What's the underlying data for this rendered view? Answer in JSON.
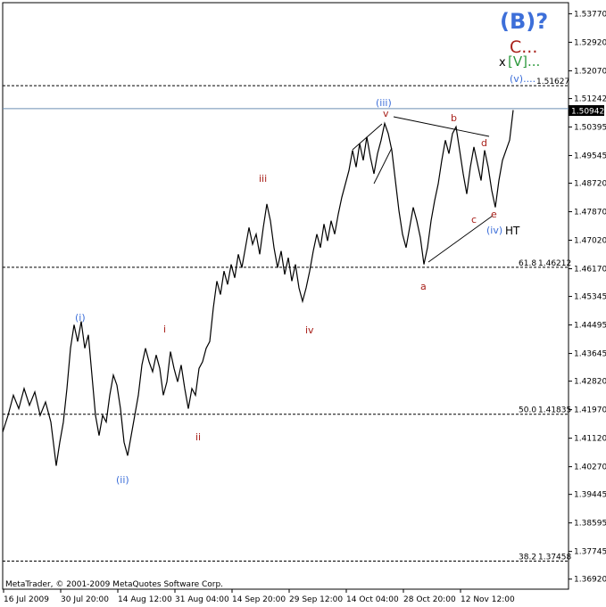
{
  "footer": {
    "copyright": "MetaTrader, © 2001-2009 MetaQuotes Software Corp."
  },
  "colors": {
    "background": "#ffffff",
    "price": "#000000",
    "blue": "#3d6fd9",
    "red": "#a8201a",
    "green": "#2e9a3e",
    "level_line": "#000000",
    "current_price_line": "#6e8fb3",
    "current_price_box": "#000000"
  },
  "annotations": {
    "big": "(B)?",
    "c_dots": "C...",
    "x": "x",
    "v_bracket": "[V]...",
    "v_paren": "(v)....",
    "ht": "HT",
    "wave_labels": [
      "(i)",
      "(ii)",
      "(iii)",
      "(iv)",
      "i",
      "ii",
      "iii",
      "iv",
      "v",
      "a",
      "b",
      "c",
      "d",
      "e"
    ]
  },
  "chart_data": {
    "type": "line",
    "title": "",
    "ylim": [
      1.3662,
      1.541
    ],
    "x_tick_labels": [
      "16 Jul 2009",
      "30 Jul 20:00",
      "14 Aug 12:00",
      "31 Aug 04:00",
      "14 Sep 20:00",
      "29 Sep 12:00",
      "14 Oct 04:00",
      "28 Oct 20:00",
      "12 Nov 12:00"
    ],
    "y_tick_labels": [
      "1.53770",
      "1.52920",
      "1.52070",
      "1.51242",
      "1.50395",
      "1.49545",
      "1.48720",
      "1.47870",
      "1.47020",
      "1.46170",
      "1.45345",
      "1.44495",
      "1.43645",
      "1.42820",
      "1.41970",
      "1.41120",
      "1.40270",
      "1.39445",
      "1.38595",
      "1.37745",
      "1.36920"
    ],
    "current_price": "1.50942",
    "levels": [
      {
        "label": "",
        "value": "1.51627"
      },
      {
        "label": "61.8",
        "value": "1.46212"
      },
      {
        "label": "50.0",
        "value": "1.41835"
      },
      {
        "label": "38.2",
        "value": "1.37458"
      }
    ],
    "series": [
      {
        "values": [
          [
            0,
            1.413
          ],
          [
            6,
            1.418
          ],
          [
            12,
            1.424
          ],
          [
            18,
            1.42
          ],
          [
            24,
            1.426
          ],
          [
            30,
            1.421
          ],
          [
            36,
            1.425
          ],
          [
            42,
            1.418
          ],
          [
            48,
            1.422
          ],
          [
            54,
            1.416
          ],
          [
            60,
            1.403
          ],
          [
            64,
            1.41
          ],
          [
            68,
            1.416
          ],
          [
            72,
            1.426
          ],
          [
            76,
            1.438
          ],
          [
            80,
            1.445
          ],
          [
            84,
            1.44
          ],
          [
            88,
            1.446
          ],
          [
            92,
            1.438
          ],
          [
            96,
            1.442
          ],
          [
            100,
            1.43
          ],
          [
            104,
            1.418
          ],
          [
            108,
            1.412
          ],
          [
            112,
            1.418
          ],
          [
            116,
            1.416
          ],
          [
            120,
            1.424
          ],
          [
            124,
            1.43
          ],
          [
            128,
            1.427
          ],
          [
            132,
            1.42
          ],
          [
            136,
            1.41
          ],
          [
            140,
            1.406
          ],
          [
            144,
            1.412
          ],
          [
            148,
            1.418
          ],
          [
            152,
            1.424
          ],
          [
            156,
            1.433
          ],
          [
            160,
            1.438
          ],
          [
            164,
            1.434
          ],
          [
            168,
            1.431
          ],
          [
            172,
            1.436
          ],
          [
            176,
            1.432
          ],
          [
            180,
            1.424
          ],
          [
            184,
            1.428
          ],
          [
            188,
            1.437
          ],
          [
            192,
            1.432
          ],
          [
            196,
            1.428
          ],
          [
            200,
            1.433
          ],
          [
            204,
            1.426
          ],
          [
            208,
            1.42
          ],
          [
            212,
            1.426
          ],
          [
            216,
            1.424
          ],
          [
            220,
            1.432
          ],
          [
            224,
            1.434
          ],
          [
            228,
            1.438
          ],
          [
            232,
            1.44
          ],
          [
            236,
            1.45
          ],
          [
            240,
            1.458
          ],
          [
            244,
            1.454
          ],
          [
            248,
            1.461
          ],
          [
            252,
            1.457
          ],
          [
            256,
            1.463
          ],
          [
            260,
            1.459
          ],
          [
            264,
            1.466
          ],
          [
            268,
            1.462
          ],
          [
            272,
            1.468
          ],
          [
            276,
            1.474
          ],
          [
            280,
            1.469
          ],
          [
            284,
            1.472
          ],
          [
            288,
            1.466
          ],
          [
            292,
            1.474
          ],
          [
            296,
            1.481
          ],
          [
            300,
            1.476
          ],
          [
            304,
            1.468
          ],
          [
            308,
            1.462
          ],
          [
            312,
            1.467
          ],
          [
            316,
            1.46
          ],
          [
            320,
            1.465
          ],
          [
            324,
            1.458
          ],
          [
            328,
            1.463
          ],
          [
            332,
            1.456
          ],
          [
            336,
            1.452
          ],
          [
            340,
            1.456
          ],
          [
            344,
            1.461
          ],
          [
            348,
            1.467
          ],
          [
            352,
            1.472
          ],
          [
            356,
            1.468
          ],
          [
            360,
            1.475
          ],
          [
            364,
            1.47
          ],
          [
            368,
            1.476
          ],
          [
            372,
            1.472
          ],
          [
            376,
            1.478
          ],
          [
            380,
            1.483
          ],
          [
            384,
            1.487
          ],
          [
            388,
            1.491
          ],
          [
            392,
            1.497
          ],
          [
            396,
            1.492
          ],
          [
            400,
            1.499
          ],
          [
            404,
            1.494
          ],
          [
            408,
            1.501
          ],
          [
            412,
            1.495
          ],
          [
            416,
            1.49
          ],
          [
            420,
            1.496
          ],
          [
            424,
            1.5
          ],
          [
            428,
            1.505
          ],
          [
            432,
            1.502
          ],
          [
            436,
            1.497
          ],
          [
            440,
            1.488
          ],
          [
            444,
            1.479
          ],
          [
            448,
            1.472
          ],
          [
            452,
            1.468
          ],
          [
            456,
            1.474
          ],
          [
            460,
            1.48
          ],
          [
            464,
            1.476
          ],
          [
            468,
            1.471
          ],
          [
            472,
            1.463
          ],
          [
            476,
            1.468
          ],
          [
            480,
            1.476
          ],
          [
            484,
            1.482
          ],
          [
            488,
            1.487
          ],
          [
            492,
            1.494
          ],
          [
            496,
            1.5
          ],
          [
            500,
            1.496
          ],
          [
            504,
            1.502
          ],
          [
            508,
            1.504
          ],
          [
            512,
            1.497
          ],
          [
            516,
            1.49
          ],
          [
            520,
            1.484
          ],
          [
            524,
            1.492
          ],
          [
            528,
            1.498
          ],
          [
            532,
            1.493
          ],
          [
            536,
            1.488
          ],
          [
            540,
            1.497
          ],
          [
            544,
            1.492
          ],
          [
            548,
            1.485
          ],
          [
            552,
            1.48
          ],
          [
            556,
            1.488
          ],
          [
            560,
            1.494
          ],
          [
            564,
            1.497
          ],
          [
            568,
            1.5
          ],
          [
            572,
            1.509
          ]
        ]
      }
    ]
  }
}
